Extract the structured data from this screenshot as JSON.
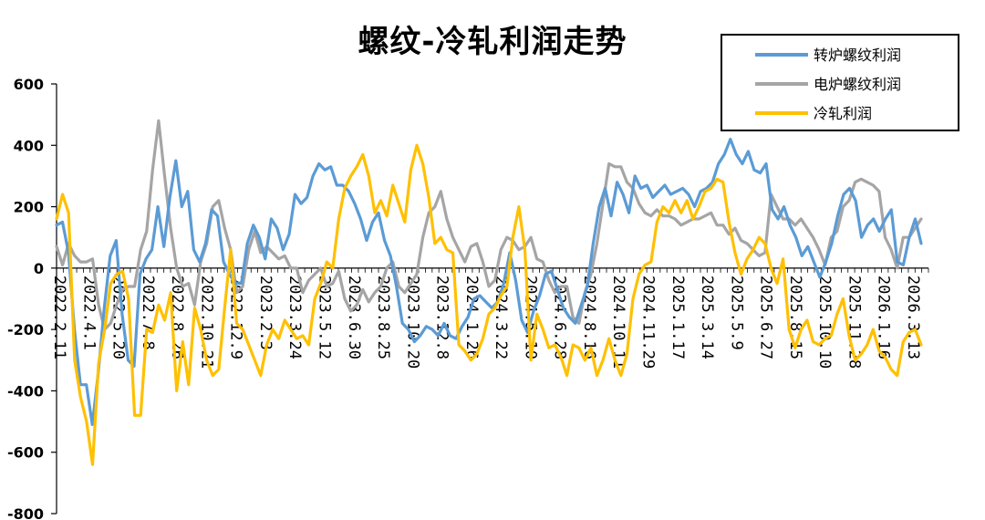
{
  "chart_data": {
    "type": "line",
    "title": "螺纹-冷轧利润走势",
    "xlabel": "",
    "ylabel": "",
    "ylim": [
      -800,
      600
    ],
    "yticks": [
      600,
      400,
      200,
      0,
      -200,
      -400,
      -600,
      -800
    ],
    "xtick_labels": [
      "2022.2.11",
      "2022.4.1",
      "2022.5.20",
      "2022.7.8",
      "2022.8.26",
      "2022.10.21",
      "2022.12.9",
      "2023.2.3",
      "2023.3.24",
      "2023.5.12",
      "2023.6.30",
      "2023.8.25",
      "2023.10.20",
      "2023.12.8",
      "2024.1.26",
      "2024.3.22",
      "2024.5.10",
      "2024.6.28",
      "2024.8.16",
      "2024.10.11",
      "2024.11.29",
      "2025.1.17",
      "2025.3.14",
      "2025.5.9",
      "2025.6.27",
      "2025.8.15",
      "2025.10.10",
      "2025.11.28",
      "2026.1.16",
      "2026.3.13"
    ],
    "legend_position": "top-right",
    "grid": false,
    "series": [
      {
        "name": "转炉螺纹利润",
        "color": "#5B9BD5",
        "values": [
          140,
          150,
          50,
          -200,
          -380,
          -380,
          -510,
          -340,
          -130,
          40,
          90,
          -150,
          -300,
          -320,
          -20,
          30,
          60,
          200,
          70,
          230,
          350,
          200,
          250,
          60,
          20,
          80,
          190,
          170,
          20,
          -20,
          -50,
          -50,
          80,
          140,
          100,
          30,
          160,
          130,
          60,
          110,
          240,
          210,
          230,
          300,
          340,
          320,
          330,
          270,
          270,
          250,
          210,
          160,
          90,
          150,
          180,
          90,
          40,
          -60,
          -180,
          -200,
          -240,
          -220,
          -190,
          -200,
          -220,
          -180,
          -220,
          -230,
          -190,
          -160,
          -100,
          -90,
          -110,
          -130,
          -110,
          -50,
          50,
          -40,
          -170,
          -210,
          -140,
          -90,
          -20,
          -10,
          -70,
          -130,
          -160,
          -180,
          -120,
          -60,
          80,
          200,
          260,
          170,
          280,
          240,
          180,
          300,
          260,
          270,
          230,
          250,
          270,
          240,
          250,
          260,
          240,
          200,
          250,
          260,
          280,
          340,
          370,
          420,
          370,
          340,
          380,
          320,
          310,
          340,
          190,
          160,
          200,
          140,
          100,
          40,
          70,
          20,
          -30,
          20,
          80,
          170,
          240,
          260,
          220,
          100,
          140,
          160,
          120,
          160,
          190,
          20,
          10,
          100,
          160,
          80
        ]
      },
      {
        "name": "电炉螺纹利润",
        "color": "#A5A5A5",
        "values": [
          70,
          10,
          80,
          40,
          20,
          20,
          30,
          -120,
          -200,
          -180,
          -120,
          -70,
          -60,
          -60,
          60,
          120,
          320,
          480,
          300,
          130,
          0,
          -60,
          -50,
          -120,
          20,
          80,
          200,
          220,
          130,
          60,
          -80,
          -60,
          60,
          120,
          50,
          70,
          50,
          30,
          40,
          0,
          0,
          -80,
          -40,
          -20,
          0,
          -60,
          -50,
          -10,
          -100,
          -140,
          -120,
          -70,
          -110,
          -80,
          -60,
          0,
          20,
          -60,
          -80,
          -50,
          -20,
          100,
          180,
          200,
          250,
          160,
          100,
          60,
          20,
          70,
          80,
          20,
          -60,
          -40,
          60,
          100,
          90,
          60,
          70,
          100,
          30,
          20,
          -40,
          -80,
          -60,
          -60,
          -160,
          -180,
          -80,
          -20,
          80,
          210,
          340,
          330,
          330,
          280,
          260,
          210,
          180,
          170,
          190,
          170,
          170,
          160,
          140,
          150,
          160,
          160,
          170,
          180,
          140,
          140,
          110,
          130,
          90,
          80,
          60,
          40,
          50,
          240,
          200,
          160,
          160,
          140,
          160,
          130,
          100,
          60,
          10,
          100,
          120,
          200,
          220,
          280,
          290,
          280,
          270,
          250,
          100,
          60,
          0,
          100,
          100,
          130,
          160
        ]
      },
      {
        "name": "冷轧利润",
        "color": "#FFC000",
        "values": [
          160,
          240,
          180,
          -300,
          -420,
          -500,
          -640,
          -310,
          -200,
          -50,
          -20,
          -10,
          -100,
          -480,
          -480,
          -200,
          -210,
          -120,
          -170,
          -80,
          -400,
          -240,
          -380,
          -130,
          -200,
          -300,
          -350,
          -330,
          -130,
          60,
          -180,
          -200,
          -250,
          -300,
          -350,
          -250,
          -200,
          -230,
          -170,
          -200,
          -230,
          -220,
          -250,
          -100,
          -50,
          20,
          0,
          160,
          260,
          300,
          330,
          370,
          300,
          180,
          220,
          170,
          270,
          210,
          150,
          320,
          400,
          340,
          230,
          80,
          100,
          60,
          50,
          -250,
          -270,
          -300,
          -280,
          -230,
          -150,
          -130,
          -90,
          -60,
          100,
          200,
          60,
          -300,
          -150,
          -200,
          -260,
          -250,
          -290,
          -350,
          -250,
          -260,
          -300,
          -260,
          -350,
          -300,
          -230,
          -300,
          -350,
          -280,
          -100,
          -20,
          10,
          20,
          150,
          200,
          180,
          220,
          180,
          220,
          160,
          200,
          250,
          260,
          290,
          280,
          150,
          50,
          -20,
          30,
          60,
          100,
          80,
          0,
          -50,
          30,
          -200,
          -260,
          -200,
          -170,
          -240,
          -250,
          -230,
          -220,
          -150,
          -100,
          -220,
          -300,
          -280,
          -250,
          -200,
          -270,
          -290,
          -330,
          -350,
          -240,
          -210,
          -200,
          -250
        ]
      }
    ]
  }
}
